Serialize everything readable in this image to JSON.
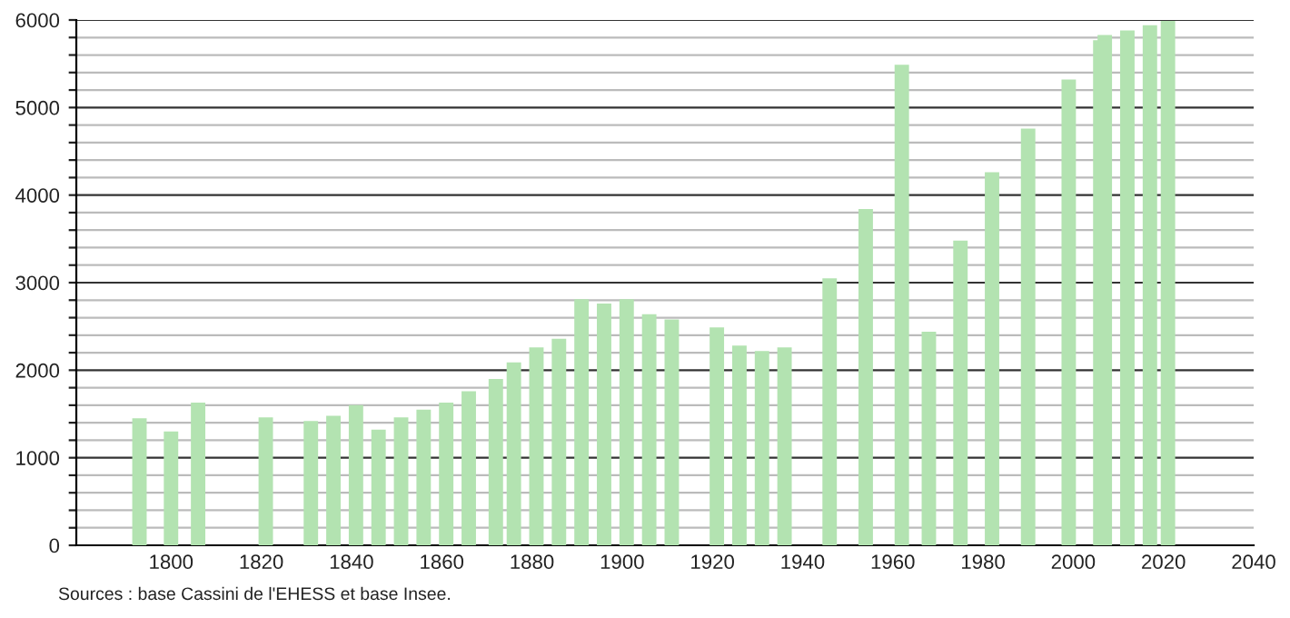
{
  "chart_data": {
    "type": "bar",
    "x": [
      1793,
      1800,
      1806,
      1821,
      1831,
      1836,
      1841,
      1846,
      1851,
      1856,
      1861,
      1866,
      1872,
      1876,
      1881,
      1886,
      1891,
      1896,
      1901,
      1906,
      1911,
      1921,
      1926,
      1931,
      1936,
      1946,
      1954,
      1962,
      1968,
      1975,
      1982,
      1990,
      1999,
      2006,
      2007,
      2012,
      2017,
      2021
    ],
    "values": [
      1450,
      1300,
      1630,
      1460,
      1420,
      1480,
      1600,
      1320,
      1460,
      1550,
      1630,
      1760,
      1900,
      2090,
      2260,
      2360,
      2810,
      2760,
      2810,
      2640,
      2580,
      2490,
      2280,
      2220,
      2260,
      3050,
      3840,
      5490,
      2440,
      3480,
      4260,
      4760,
      5320,
      5770,
      5830,
      5880,
      5940,
      5990
    ],
    "color": "#b3e3b1",
    "xlim": [
      1779,
      2040
    ],
    "xticks": [
      1800,
      1820,
      1840,
      1860,
      1880,
      1900,
      1920,
      1940,
      1960,
      1980,
      2000,
      2020,
      2040
    ],
    "ylim": [
      0,
      6000
    ],
    "yticks": [
      0,
      {
        "value": 200,
        "label": null
      },
      {
        "value": 400,
        "label": null
      },
      {
        "value": 600,
        "label": null
      },
      {
        "value": 800,
        "label": null
      },
      1000,
      {
        "value": 1200,
        "label": null
      },
      {
        "value": 1400,
        "label": null
      },
      {
        "value": 1600,
        "label": null
      },
      {
        "value": 1800,
        "label": null
      },
      2000,
      {
        "value": 2200,
        "label": null
      },
      {
        "value": 2400,
        "label": null
      },
      {
        "value": 2600,
        "label": null
      },
      {
        "value": 2800,
        "label": null
      },
      3000,
      {
        "value": 3200,
        "label": null
      },
      {
        "value": 3400,
        "label": null
      },
      {
        "value": 3600,
        "label": null
      },
      {
        "value": 3800,
        "label": null
      },
      4000,
      {
        "value": 4200,
        "label": null
      },
      {
        "value": 4400,
        "label": null
      },
      {
        "value": 4600,
        "label": null
      },
      {
        "value": 4800,
        "label": null
      },
      5000,
      {
        "value": 5200,
        "label": null
      },
      {
        "value": 5400,
        "label": null
      },
      {
        "value": 5600,
        "label": null
      },
      {
        "value": 5800,
        "label": null
      },
      6000
    ],
    "grid": "y",
    "annotations": [
      "Sources : base Cassini de l'EHESS et base Insee."
    ]
  }
}
